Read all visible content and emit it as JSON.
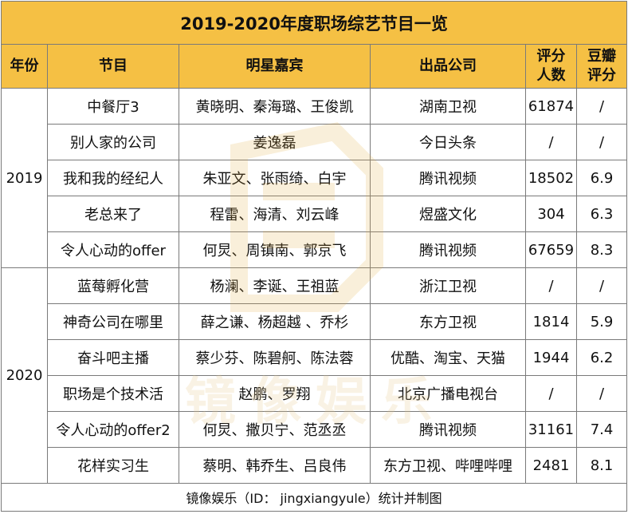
{
  "title": "2019-2020年度职场综艺节目一览",
  "headers": {
    "year": "年份",
    "program": "节目",
    "guests": "明星嘉宾",
    "company": "出品公司",
    "raters_line1": "评分",
    "raters_line2": "人数",
    "score_line1": "豆瓣",
    "score_line2": "评分"
  },
  "groups": [
    {
      "year": "2019"
    },
    {
      "year": "2020"
    }
  ],
  "rows": [
    {
      "program": "中餐厅3",
      "guests": "黄晓明、秦海璐、王俊凯",
      "company": "湖南卫视",
      "raters": "61874",
      "score": "/"
    },
    {
      "program": "别人家的公司",
      "guests": "姜逸磊",
      "company": "今日头条",
      "raters": "/",
      "score": "/"
    },
    {
      "program": "我和我的经纪人",
      "guests": "朱亚文、张雨绮、白宇",
      "company": "腾讯视频",
      "raters": "18502",
      "score": "6.9"
    },
    {
      "program": "老总来了",
      "guests": "程雷、海清、刘云峰",
      "company": "煜盛文化",
      "raters": "304",
      "score": "6.3"
    },
    {
      "program": "令人心动的offer",
      "guests": "何炅、周镇南、郭京飞",
      "company": "腾讯视频",
      "raters": "67659",
      "score": "8.3"
    },
    {
      "program": "蓝莓孵化营",
      "guests": "杨澜、李诞、王祖蓝",
      "company": "浙江卫视",
      "raters": "/",
      "score": "/"
    },
    {
      "program": "神奇公司在哪里",
      "guests": "薛之谦、杨超越 、乔杉",
      "company": "东方卫视",
      "raters": "1814",
      "score": "5.9"
    },
    {
      "program": "奋斗吧主播",
      "guests": "蔡少芬、陈碧舸、陈法蓉",
      "company": "优酷、淘宝、天猫",
      "raters": "1944",
      "score": "6.2"
    },
    {
      "program": "职场是个技术活",
      "guests": "赵鹏、罗翔",
      "company": "北京广播电视台",
      "raters": "/",
      "score": "/"
    },
    {
      "program": "令人心动的offer2",
      "guests": "何炅、撒贝宁、范丞丞",
      "company": "腾讯视频",
      "raters": "31161",
      "score": "7.4"
    },
    {
      "program": "花样实习生",
      "guests": "蔡明、韩乔生、吕良伟",
      "company": "东方卫视、哔哩哔哩",
      "raters": "2481",
      "score": "8.1"
    }
  ],
  "footer": "镜像娱乐（ID： jingxiangyule）统计并制图",
  "watermark_text": "镜像娱乐",
  "colors": {
    "header_bg": "#f5c044",
    "border": "#7a7a7a",
    "watermark": "#f3d9a0"
  }
}
